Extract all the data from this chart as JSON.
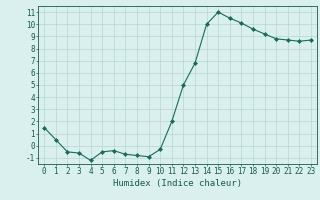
{
  "x": [
    0,
    1,
    2,
    3,
    4,
    5,
    6,
    7,
    8,
    9,
    10,
    11,
    12,
    13,
    14,
    15,
    16,
    17,
    18,
    19,
    20,
    21,
    22,
    23
  ],
  "y": [
    1.5,
    0.5,
    -0.5,
    -0.6,
    -1.2,
    -0.5,
    -0.4,
    -0.7,
    -0.8,
    -0.9,
    -0.3,
    2.0,
    5.0,
    6.8,
    10.0,
    11.0,
    10.5,
    10.1,
    9.6,
    9.2,
    8.8,
    8.7,
    8.6,
    8.7
  ],
  "line_color": "#1a6b5a",
  "marker": "D",
  "marker_size": 2.0,
  "bg_color": "#d9f0ee",
  "grid_color": "#b8d4d0",
  "xlabel": "Humidex (Indice chaleur)",
  "xlim": [
    -0.5,
    23.5
  ],
  "ylim": [
    -1.5,
    11.5
  ],
  "yticks": [
    -1,
    0,
    1,
    2,
    3,
    4,
    5,
    6,
    7,
    8,
    9,
    10,
    11
  ],
  "xtick_labels": [
    "0",
    "1",
    "2",
    "3",
    "4",
    "5",
    "6",
    "7",
    "8",
    "9",
    "10",
    "11",
    "12",
    "13",
    "14",
    "15",
    "16",
    "17",
    "18",
    "19",
    "20",
    "21",
    "22",
    "23"
  ],
  "tick_color": "#1a5a48",
  "label_fontsize": 6.5,
  "tick_fontsize": 5.5
}
